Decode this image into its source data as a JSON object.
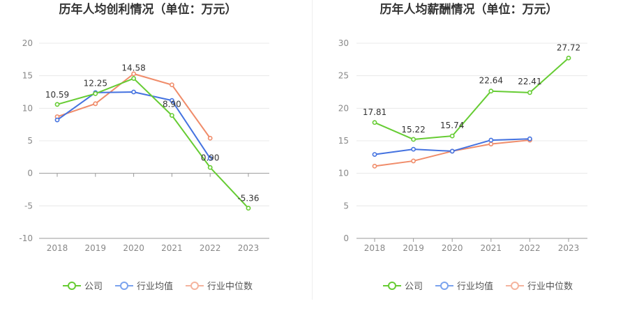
{
  "chart_data": [
    {
      "type": "line",
      "title": "历年人均创利情况（单位：万元）",
      "categories": [
        "2018",
        "2019",
        "2020",
        "2021",
        "2022",
        "2023"
      ],
      "ylim": [
        -10,
        20
      ],
      "yticks": [
        -10,
        -5,
        0,
        5,
        10,
        15,
        20
      ],
      "grid": true,
      "legend_position": "bottom-center",
      "series": [
        {
          "name": "公司",
          "color": "#66cc33",
          "values": [
            10.59,
            12.25,
            14.58,
            8.9,
            0.9,
            -5.36
          ]
        },
        {
          "name": "行业均值",
          "color": "#4472e0",
          "values": [
            8.2,
            12.4,
            12.5,
            11.2,
            2.3,
            null
          ]
        },
        {
          "name": "行业中位数",
          "color": "#f08c6a",
          "values": [
            8.7,
            10.7,
            15.3,
            13.6,
            5.4,
            null
          ]
        }
      ],
      "data_labels": {
        "series": "公司",
        "texts": [
          "10.59",
          "12.25",
          "14.58",
          "8.90",
          "0.90",
          "-5.36"
        ]
      }
    },
    {
      "type": "line",
      "title": "历年人均薪酬情况（单位：万元）",
      "categories": [
        "2018",
        "2019",
        "2020",
        "2021",
        "2022",
        "2023"
      ],
      "ylim": [
        0,
        30
      ],
      "yticks": [
        0,
        5,
        10,
        15,
        20,
        25,
        30
      ],
      "grid": true,
      "legend_position": "bottom-center",
      "series": [
        {
          "name": "公司",
          "color": "#66cc33",
          "values": [
            17.81,
            15.22,
            15.74,
            22.64,
            22.41,
            27.72
          ]
        },
        {
          "name": "行业均值",
          "color": "#4472e0",
          "values": [
            12.9,
            13.7,
            13.4,
            15.1,
            15.3,
            null
          ]
        },
        {
          "name": "行业中位数",
          "color": "#f08c6a",
          "values": [
            11.1,
            11.9,
            13.4,
            14.5,
            15.1,
            null
          ]
        }
      ],
      "data_labels": {
        "series": "公司",
        "texts": [
          "17.81",
          "15.22",
          "15.74",
          "22.64",
          "22.41",
          "27.72"
        ]
      }
    }
  ],
  "legend": {
    "items": [
      {
        "label": "公司",
        "color": "#66cc33"
      },
      {
        "label": "行业均值",
        "color": "#7ba3ee"
      },
      {
        "label": "行业中位数",
        "color": "#f5b49e"
      }
    ]
  }
}
